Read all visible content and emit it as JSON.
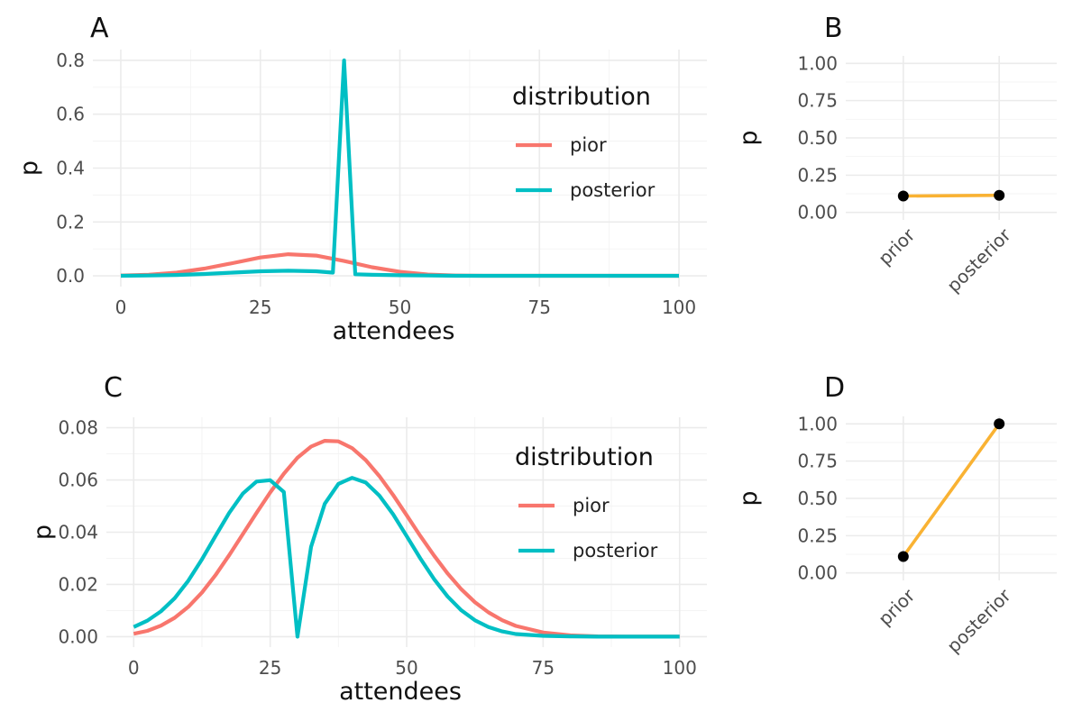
{
  "chart_data": [
    {
      "tag": "A",
      "type": "line",
      "xlabel": "attendees",
      "ylabel": "p",
      "xlim": [
        0,
        100
      ],
      "ylim": [
        0,
        0.8
      ],
      "xticks": [
        0,
        25,
        50,
        75,
        100
      ],
      "yticks": [
        0,
        0.2,
        0.4,
        0.6,
        0.8
      ],
      "ytick_labels": [
        "0.0",
        "0.2",
        "0.4",
        "0.6",
        "0.8"
      ],
      "grid": true,
      "legend": {
        "title": "distribution",
        "position": "top-right"
      },
      "series": [
        {
          "name": "pior",
          "color": "#F8766D",
          "x": [
            0,
            5,
            10,
            15,
            20,
            25,
            30,
            35,
            40,
            45,
            50,
            55,
            60,
            65,
            70,
            75,
            80,
            85,
            90,
            95,
            100
          ],
          "y": [
            0.001,
            0.004,
            0.012,
            0.027,
            0.047,
            0.068,
            0.08,
            0.075,
            0.055,
            0.032,
            0.015,
            0.005,
            0.001,
            0,
            0,
            0,
            0,
            0,
            0,
            0,
            0
          ]
        },
        {
          "name": "posterior",
          "color": "#00BFC4",
          "x": [
            0,
            5,
            10,
            15,
            20,
            25,
            30,
            35,
            38,
            40,
            42,
            45,
            50,
            55,
            60,
            65,
            70,
            75,
            80,
            85,
            90,
            95,
            100
          ],
          "y": [
            0.0,
            0.001,
            0.003,
            0.007,
            0.012,
            0.017,
            0.019,
            0.017,
            0.012,
            0.8,
            0.006,
            0.004,
            0.002,
            0.001,
            0,
            0,
            0,
            0,
            0,
            0,
            0,
            0,
            0
          ]
        }
      ]
    },
    {
      "tag": "B",
      "type": "line",
      "xlabel": "",
      "ylabel": "p",
      "categories": [
        "prior",
        "posterior"
      ],
      "ylim": [
        0,
        1
      ],
      "yticks": [
        0,
        0.25,
        0.5,
        0.75,
        1
      ],
      "ytick_labels": [
        "0.00",
        "0.25",
        "0.50",
        "0.75",
        "1.00"
      ],
      "grid": true,
      "line_color": "#F9B233",
      "point_color": "#000000",
      "values": [
        0.11,
        0.115
      ]
    },
    {
      "tag": "C",
      "type": "line",
      "xlabel": "attendees",
      "ylabel": "p",
      "xlim": [
        0,
        100
      ],
      "ylim": [
        0,
        0.08
      ],
      "xticks": [
        0,
        25,
        50,
        75,
        100
      ],
      "yticks": [
        0,
        0.02,
        0.04,
        0.06,
        0.08
      ],
      "ytick_labels": [
        "0.00",
        "0.02",
        "0.04",
        "0.06",
        "0.08"
      ],
      "grid": true,
      "legend": {
        "title": "distribution",
        "position": "top-right"
      },
      "series": [
        {
          "name": "pior",
          "color": "#F8766D",
          "x": [
            0,
            2.5,
            5,
            7.5,
            10,
            12.5,
            15,
            17.5,
            20,
            22.5,
            25,
            27.5,
            30,
            32.5,
            35,
            37.5,
            40,
            42.5,
            45,
            47.5,
            50,
            52.5,
            55,
            57.5,
            60,
            62.5,
            65,
            67.5,
            70,
            75,
            80,
            85,
            90,
            95,
            100
          ],
          "y": [
            0.0011,
            0.0022,
            0.0042,
            0.0072,
            0.0114,
            0.0169,
            0.0236,
            0.0312,
            0.0393,
            0.0474,
            0.0552,
            0.0624,
            0.0685,
            0.0728,
            0.075,
            0.0748,
            0.0722,
            0.0676,
            0.0615,
            0.0543,
            0.0465,
            0.0386,
            0.0311,
            0.0242,
            0.0182,
            0.0132,
            0.0093,
            0.0063,
            0.0041,
            0.0016,
            0.0005,
            0.0001,
            0,
            0,
            0
          ]
        },
        {
          "name": "posterior",
          "color": "#00BFC4",
          "x": [
            0,
            2.5,
            5,
            7.5,
            10,
            12.5,
            15,
            17.5,
            20,
            22.5,
            25,
            27.5,
            30,
            32.5,
            35,
            37.5,
            40,
            42.5,
            45,
            47.5,
            50,
            52.5,
            55,
            57.5,
            60,
            62.5,
            65,
            67.5,
            70,
            75,
            80,
            85,
            90,
            95,
            100
          ],
          "y": [
            0.0037,
            0.0061,
            0.0097,
            0.0147,
            0.0214,
            0.0296,
            0.0386,
            0.0474,
            0.0548,
            0.0594,
            0.0599,
            0.0554,
            0.0,
            0.0344,
            0.0509,
            0.0585,
            0.0608,
            0.059,
            0.054,
            0.0469,
            0.0385,
            0.03,
            0.0221,
            0.0154,
            0.0101,
            0.0063,
            0.0037,
            0.002,
            0.001,
            0.0003,
            0.0001,
            0,
            0,
            0,
            0
          ]
        }
      ]
    },
    {
      "tag": "D",
      "type": "line",
      "xlabel": "",
      "ylabel": "p",
      "categories": [
        "prior",
        "posterior"
      ],
      "ylim": [
        0,
        1
      ],
      "yticks": [
        0,
        0.25,
        0.5,
        0.75,
        1
      ],
      "ytick_labels": [
        "0.00",
        "0.25",
        "0.50",
        "0.75",
        "1.00"
      ],
      "grid": true,
      "line_color": "#F9B233",
      "point_color": "#000000",
      "values": [
        0.11,
        1.0
      ]
    }
  ]
}
